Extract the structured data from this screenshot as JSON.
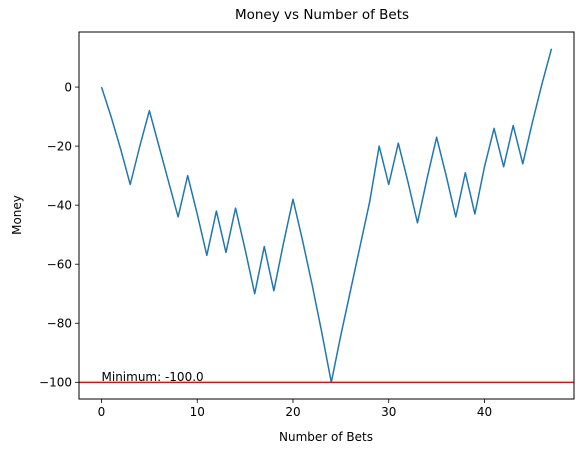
{
  "chart_data": {
    "type": "line",
    "title": "Money vs Number of Bets",
    "xlabel": "Number of Bets",
    "ylabel": "Money",
    "xlim": [
      -2.35,
      49.35
    ],
    "ylim": [
      -105.65,
      18.65
    ],
    "xticks": [
      0,
      10,
      20,
      30,
      40
    ],
    "yticks": [
      -100,
      -80,
      -60,
      -40,
      -20,
      0
    ],
    "grid": false,
    "series": [
      {
        "color": "#1f77b4",
        "x": [
          0,
          1,
          2,
          3,
          4,
          5,
          6,
          7,
          8,
          9,
          10,
          11,
          12,
          13,
          14,
          15,
          16,
          17,
          18,
          19,
          20,
          21,
          22,
          23,
          24,
          25,
          26,
          27,
          28,
          29,
          30,
          31,
          32,
          33,
          34,
          35,
          36,
          37,
          38,
          39,
          40,
          41,
          42,
          43,
          44,
          45,
          46,
          47
        ],
        "y": [
          0,
          -10,
          -21,
          -33,
          -20,
          -8,
          -20,
          -32,
          -44,
          -30,
          -43,
          -57,
          -42,
          -56,
          -41,
          -55,
          -70,
          -54,
          -69,
          -53,
          -38,
          -52,
          -67,
          -83,
          -100,
          -84,
          -69,
          -54,
          -39,
          -20,
          -33,
          -19,
          -32,
          -46,
          -31,
          -17,
          -30,
          -44,
          -29,
          -43,
          -27,
          -14,
          -27,
          -13,
          -26,
          -12,
          1,
          13
        ]
      }
    ],
    "hlines": [
      {
        "y": -100,
        "color": "#ff0000"
      }
    ],
    "annotations": [
      {
        "text": "Minimum: -100.0",
        "x": 0,
        "y": -100
      }
    ]
  }
}
